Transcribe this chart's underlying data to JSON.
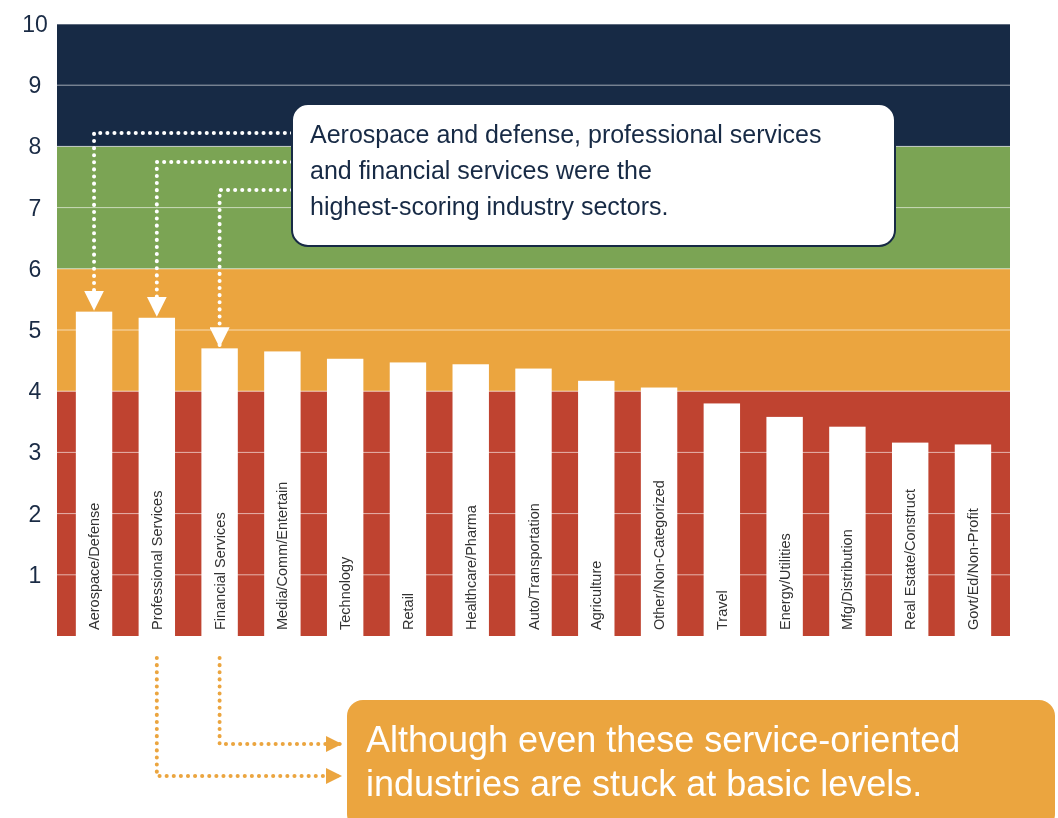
{
  "chart_data": {
    "type": "bar",
    "categories": [
      "Aerospace/Defense",
      "Professional Services",
      "Financial Services",
      "Media/Comm/Entertain",
      "Technology",
      "Retail",
      "Healthcare/Pharma",
      "Auto/Transportation",
      "Agriculture",
      "Other/Non-Categorized",
      "Travel",
      "Energy/Utilities",
      "Mfg/Distribution",
      "Real Estate/Construct",
      "Govt/Ed/Non-Profit"
    ],
    "values": [
      5.3,
      5.2,
      4.7,
      4.65,
      4.53,
      4.47,
      4.44,
      4.37,
      4.17,
      4.06,
      3.8,
      3.58,
      3.42,
      3.16,
      3.13
    ],
    "color": "#ffffff",
    "ylim": [
      0,
      10
    ],
    "yticks": [
      1,
      2,
      3,
      4,
      5,
      6,
      7,
      8,
      9,
      10
    ],
    "grid": "y",
    "bands": [
      {
        "axis": "y",
        "from": 0,
        "to": 4,
        "color": "#bf4330"
      },
      {
        "axis": "y",
        "from": 4,
        "to": 6,
        "color": "#eba53f"
      },
      {
        "axis": "y",
        "from": 6,
        "to": 8,
        "color": "#7ba454"
      },
      {
        "axis": "y",
        "from": 8,
        "to": 10,
        "color": "#172a45"
      }
    ],
    "annotations": [
      {
        "text": "Aerospace and defense, professional services and financial services were the highest-scoring industry sectors.",
        "x": "Aerospace/Defense",
        "y": 5.3
      },
      "Although even these service-oriented industries are stuck at basic levels."
    ]
  }
}
